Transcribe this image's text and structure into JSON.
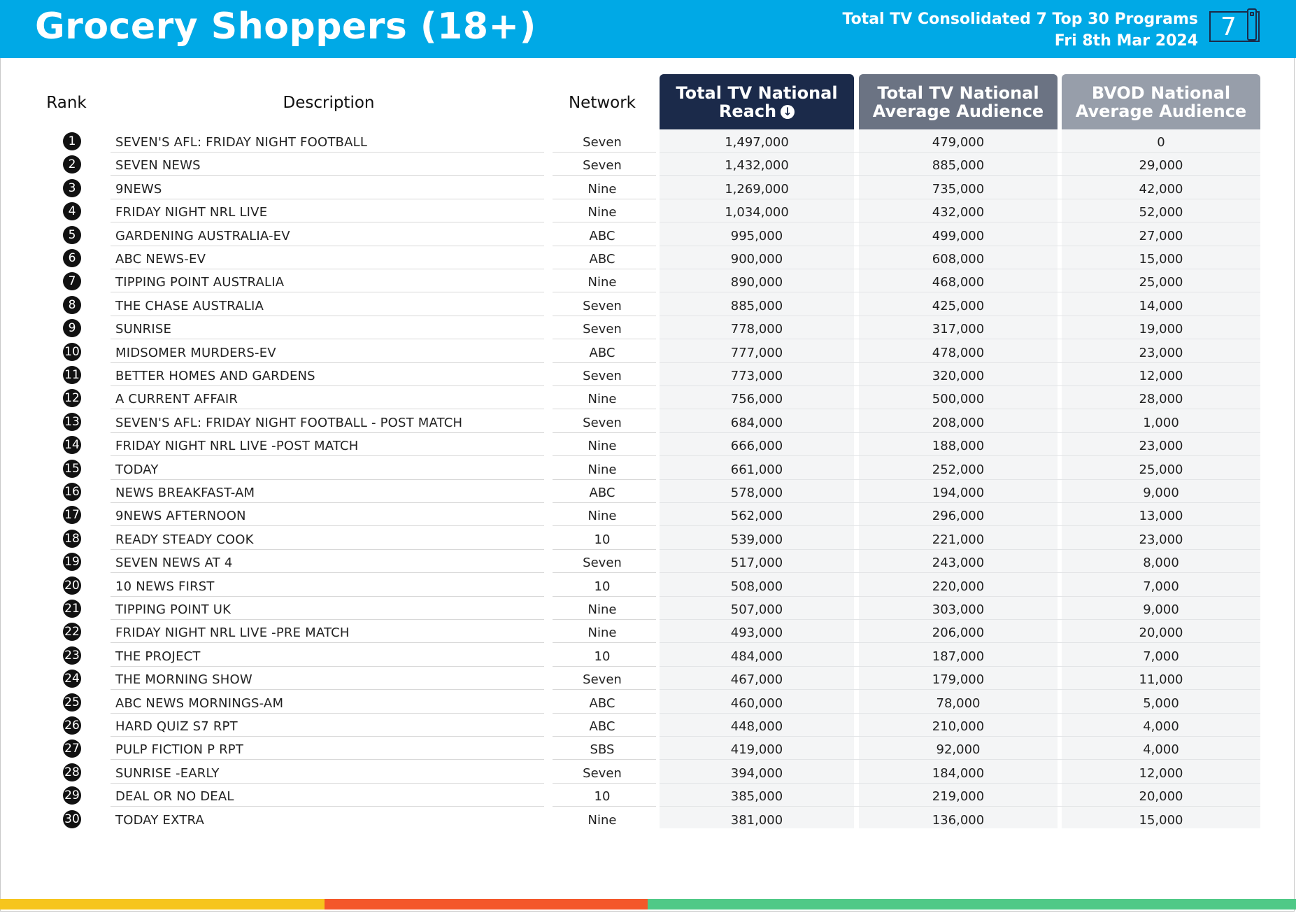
{
  "header": {
    "title": "Grocery Shoppers (18+)",
    "subtitle_line1": "Total TV Consolidated 7 Top 30 Programs",
    "subtitle_line2": "Fri 8th Mar 2024",
    "channel_logo_number": "7",
    "background_color": "#00a9e6"
  },
  "columns": {
    "rank": "Rank",
    "description": "Description",
    "network": "Network",
    "reach_line1": "Total TV National",
    "reach_line2": "Reach",
    "reach_sort_icon": "sort-down-icon",
    "avg_line1": "Total TV National",
    "avg_line2": "Average Audience",
    "bvod_line1": "BVOD National",
    "bvod_line2": "Average Audience",
    "reach_color": "#1b2a4a",
    "avg_color": "#6b7383",
    "bvod_color": "#979eaa"
  },
  "rows": [
    {
      "rank": "1",
      "description": "SEVEN'S AFL: FRIDAY NIGHT FOOTBALL",
      "network": "Seven",
      "reach": "1,497,000",
      "avg": "479,000",
      "bvod": "0"
    },
    {
      "rank": "2",
      "description": "SEVEN NEWS",
      "network": "Seven",
      "reach": "1,432,000",
      "avg": "885,000",
      "bvod": "29,000"
    },
    {
      "rank": "3",
      "description": "9NEWS",
      "network": "Nine",
      "reach": "1,269,000",
      "avg": "735,000",
      "bvod": "42,000"
    },
    {
      "rank": "4",
      "description": "FRIDAY NIGHT NRL LIVE",
      "network": "Nine",
      "reach": "1,034,000",
      "avg": "432,000",
      "bvod": "52,000"
    },
    {
      "rank": "5",
      "description": "GARDENING AUSTRALIA-EV",
      "network": "ABC",
      "reach": "995,000",
      "avg": "499,000",
      "bvod": "27,000"
    },
    {
      "rank": "6",
      "description": "ABC NEWS-EV",
      "network": "ABC",
      "reach": "900,000",
      "avg": "608,000",
      "bvod": "15,000"
    },
    {
      "rank": "7",
      "description": "TIPPING POINT AUSTRALIA",
      "network": "Nine",
      "reach": "890,000",
      "avg": "468,000",
      "bvod": "25,000"
    },
    {
      "rank": "8",
      "description": "THE CHASE AUSTRALIA",
      "network": "Seven",
      "reach": "885,000",
      "avg": "425,000",
      "bvod": "14,000"
    },
    {
      "rank": "9",
      "description": "SUNRISE",
      "network": "Seven",
      "reach": "778,000",
      "avg": "317,000",
      "bvod": "19,000"
    },
    {
      "rank": "10",
      "description": "MIDSOMER MURDERS-EV",
      "network": "ABC",
      "reach": "777,000",
      "avg": "478,000",
      "bvod": "23,000"
    },
    {
      "rank": "11",
      "description": "BETTER HOMES AND GARDENS",
      "network": "Seven",
      "reach": "773,000",
      "avg": "320,000",
      "bvod": "12,000"
    },
    {
      "rank": "12",
      "description": "A CURRENT AFFAIR",
      "network": "Nine",
      "reach": "756,000",
      "avg": "500,000",
      "bvod": "28,000"
    },
    {
      "rank": "13",
      "description": "SEVEN'S AFL: FRIDAY NIGHT FOOTBALL - POST MATCH",
      "network": "Seven",
      "reach": "684,000",
      "avg": "208,000",
      "bvod": "1,000"
    },
    {
      "rank": "14",
      "description": "FRIDAY NIGHT NRL LIVE -POST MATCH",
      "network": "Nine",
      "reach": "666,000",
      "avg": "188,000",
      "bvod": "23,000"
    },
    {
      "rank": "15",
      "description": "TODAY",
      "network": "Nine",
      "reach": "661,000",
      "avg": "252,000",
      "bvod": "25,000"
    },
    {
      "rank": "16",
      "description": "NEWS BREAKFAST-AM",
      "network": "ABC",
      "reach": "578,000",
      "avg": "194,000",
      "bvod": "9,000"
    },
    {
      "rank": "17",
      "description": "9NEWS AFTERNOON",
      "network": "Nine",
      "reach": "562,000",
      "avg": "296,000",
      "bvod": "13,000"
    },
    {
      "rank": "18",
      "description": "READY STEADY COOK",
      "network": "10",
      "reach": "539,000",
      "avg": "221,000",
      "bvod": "23,000"
    },
    {
      "rank": "19",
      "description": "SEVEN NEWS AT 4",
      "network": "Seven",
      "reach": "517,000",
      "avg": "243,000",
      "bvod": "8,000"
    },
    {
      "rank": "20",
      "description": "10 NEWS FIRST",
      "network": "10",
      "reach": "508,000",
      "avg": "220,000",
      "bvod": "7,000"
    },
    {
      "rank": "21",
      "description": "TIPPING POINT UK",
      "network": "Nine",
      "reach": "507,000",
      "avg": "303,000",
      "bvod": "9,000"
    },
    {
      "rank": "22",
      "description": "FRIDAY NIGHT NRL LIVE -PRE MATCH",
      "network": "Nine",
      "reach": "493,000",
      "avg": "206,000",
      "bvod": "20,000"
    },
    {
      "rank": "23",
      "description": "THE PROJECT",
      "network": "10",
      "reach": "484,000",
      "avg": "187,000",
      "bvod": "7,000"
    },
    {
      "rank": "24",
      "description": "THE MORNING SHOW",
      "network": "Seven",
      "reach": "467,000",
      "avg": "179,000",
      "bvod": "11,000"
    },
    {
      "rank": "25",
      "description": "ABC NEWS MORNINGS-AM",
      "network": "ABC",
      "reach": "460,000",
      "avg": "78,000",
      "bvod": "5,000"
    },
    {
      "rank": "26",
      "description": "HARD QUIZ S7 RPT",
      "network": "ABC",
      "reach": "448,000",
      "avg": "210,000",
      "bvod": "4,000"
    },
    {
      "rank": "27",
      "description": "PULP FICTION P RPT",
      "network": "SBS",
      "reach": "419,000",
      "avg": "92,000",
      "bvod": "4,000"
    },
    {
      "rank": "28",
      "description": "SUNRISE -EARLY",
      "network": "Seven",
      "reach": "394,000",
      "avg": "184,000",
      "bvod": "12,000"
    },
    {
      "rank": "29",
      "description": "DEAL OR NO DEAL",
      "network": "10",
      "reach": "385,000",
      "avg": "219,000",
      "bvod": "20,000"
    },
    {
      "rank": "30",
      "description": "TODAY EXTRA",
      "network": "Nine",
      "reach": "381,000",
      "avg": "136,000",
      "bvod": "15,000"
    }
  ],
  "footer_colors": [
    "#f6c51d",
    "#f4572a",
    "#4fc987"
  ]
}
